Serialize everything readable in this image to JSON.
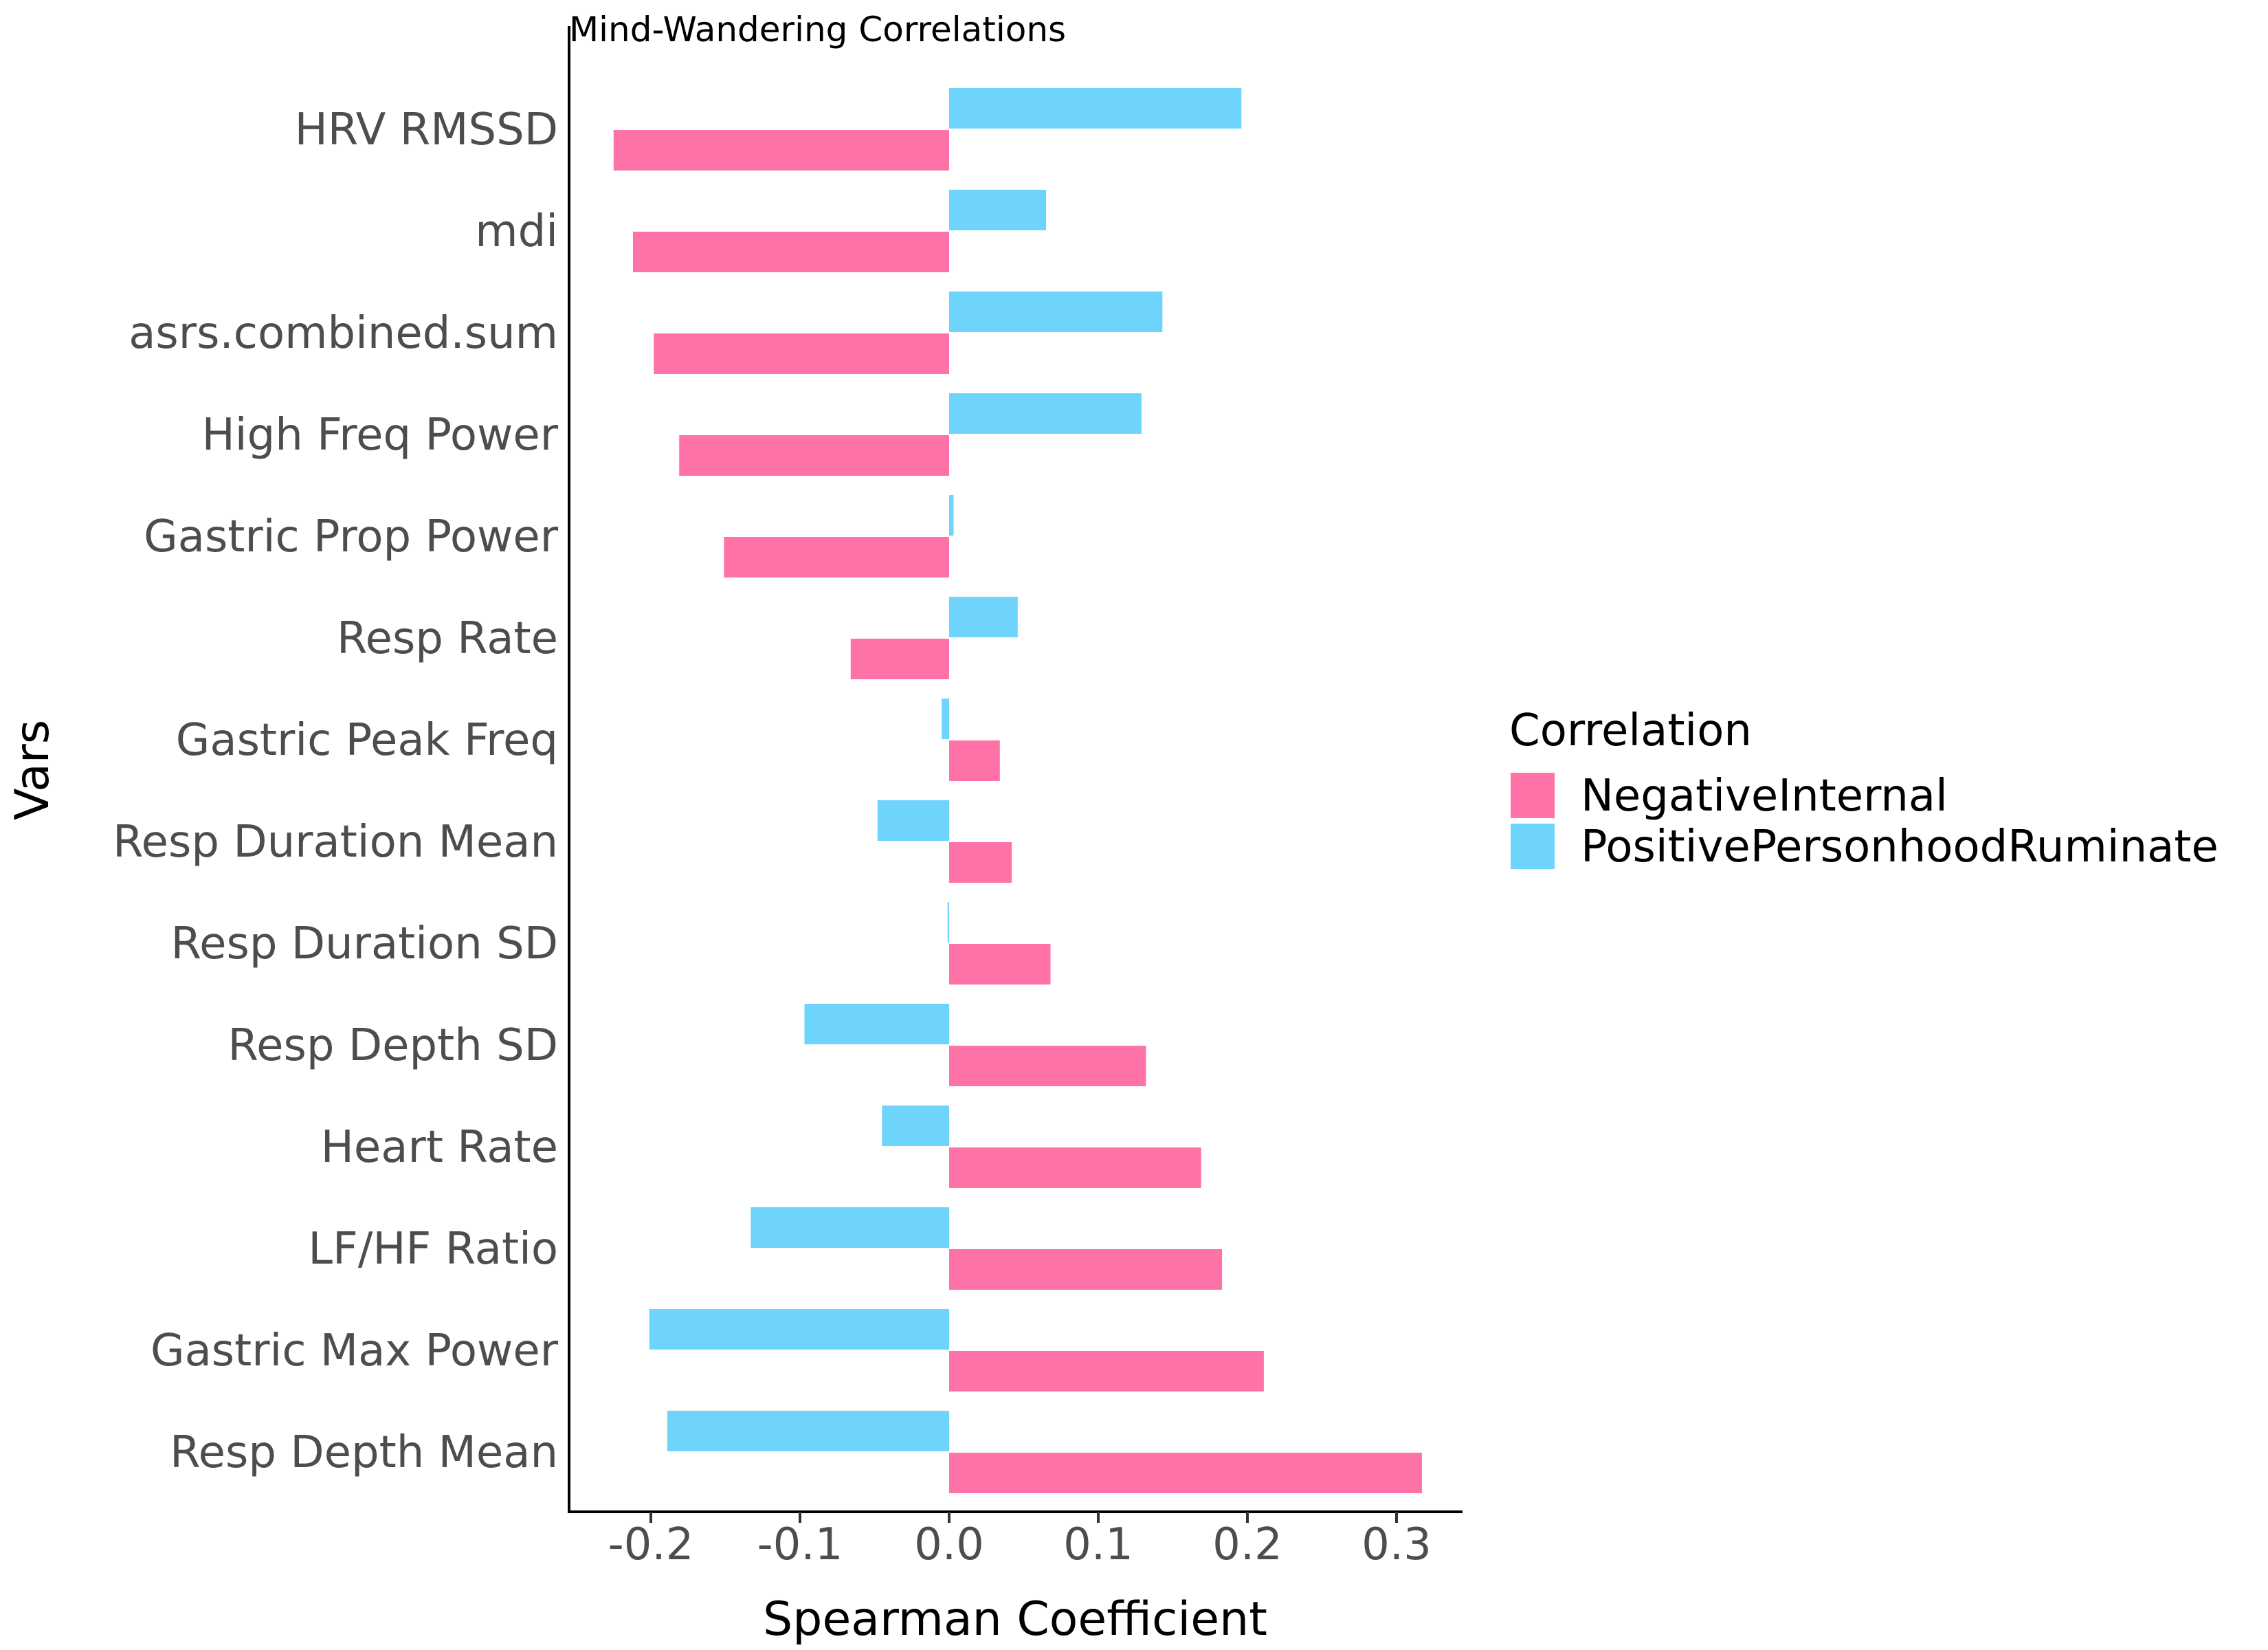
{
  "chart_data": {
    "type": "bar",
    "orientation": "horizontal",
    "title": "Mind-Wandering Correlations",
    "xlabel": "Spearman Coefficient",
    "ylabel": "Vars",
    "xlim": [
      -0.25,
      0.345
    ],
    "xticks": [
      -0.2,
      -0.1,
      0.0,
      0.1,
      0.2,
      0.3
    ],
    "xtick_labels": [
      "-0.2",
      "-0.1",
      "0.0",
      "0.1",
      "0.2",
      "0.3"
    ],
    "grid": false,
    "legend_title": "Correlation",
    "legend_position": "right",
    "categories": [
      "HRV RMSSD",
      "mdi",
      "asrs.combined.sum",
      "High Freq Power",
      "Gastric Prop Power",
      "Resp Rate",
      "Gastric Peak Freq",
      "Resp Duration Mean",
      "Resp Duration SD",
      "Resp Depth SD",
      "Heart Rate",
      "LF/HF Ratio",
      "Gastric Max Power",
      "Resp Depth Mean"
    ],
    "series": [
      {
        "name": "NegativeInternal",
        "color": "#ff72a7",
        "values": [
          -0.225,
          -0.212,
          -0.198,
          -0.181,
          -0.151,
          -0.066,
          0.034,
          0.042,
          0.068,
          0.132,
          0.169,
          0.183,
          0.211,
          0.317
        ]
      },
      {
        "name": "PositivePersonhoodRuminate",
        "color": "#6fd4fc",
        "values": [
          0.196,
          0.065,
          0.143,
          0.129,
          0.003,
          0.046,
          -0.005,
          -0.048,
          -0.001,
          -0.097,
          -0.045,
          -0.133,
          -0.201,
          -0.189
        ]
      }
    ]
  }
}
